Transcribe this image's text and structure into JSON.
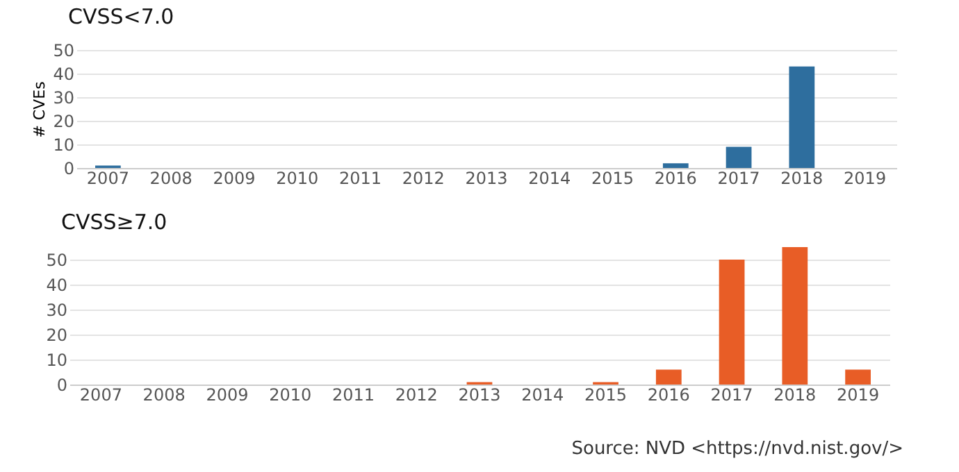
{
  "chart_data": [
    {
      "type": "bar",
      "title": "CVSS<7.0",
      "ylabel": "# CVEs",
      "categories": [
        "2007",
        "2008",
        "2009",
        "2010",
        "2011",
        "2012",
        "2013",
        "2014",
        "2015",
        "2016",
        "2017",
        "2018",
        "2019"
      ],
      "values": [
        1,
        0,
        0,
        0,
        0,
        0,
        0,
        0,
        0,
        2,
        9,
        43,
        0
      ],
      "color": "#2e6e9e",
      "ylim": [
        0,
        50
      ],
      "yticks": [
        0,
        10,
        20,
        30,
        40,
        50
      ],
      "grid": "y"
    },
    {
      "type": "bar",
      "title": "CVSS≥7.0",
      "categories": [
        "2007",
        "2008",
        "2009",
        "2010",
        "2011",
        "2012",
        "2013",
        "2014",
        "2015",
        "2016",
        "2017",
        "2018",
        "2019"
      ],
      "values": [
        0,
        0,
        0,
        0,
        0,
        0,
        1,
        0,
        1,
        6,
        50,
        55,
        6
      ],
      "color": "#e85d26",
      "ylim": [
        0,
        55
      ],
      "yticks": [
        0,
        10,
        20,
        30,
        40,
        50
      ],
      "grid": "y",
      "annotations": [
        "Source: NVD <https://nvd.nist.gov/>"
      ]
    }
  ]
}
